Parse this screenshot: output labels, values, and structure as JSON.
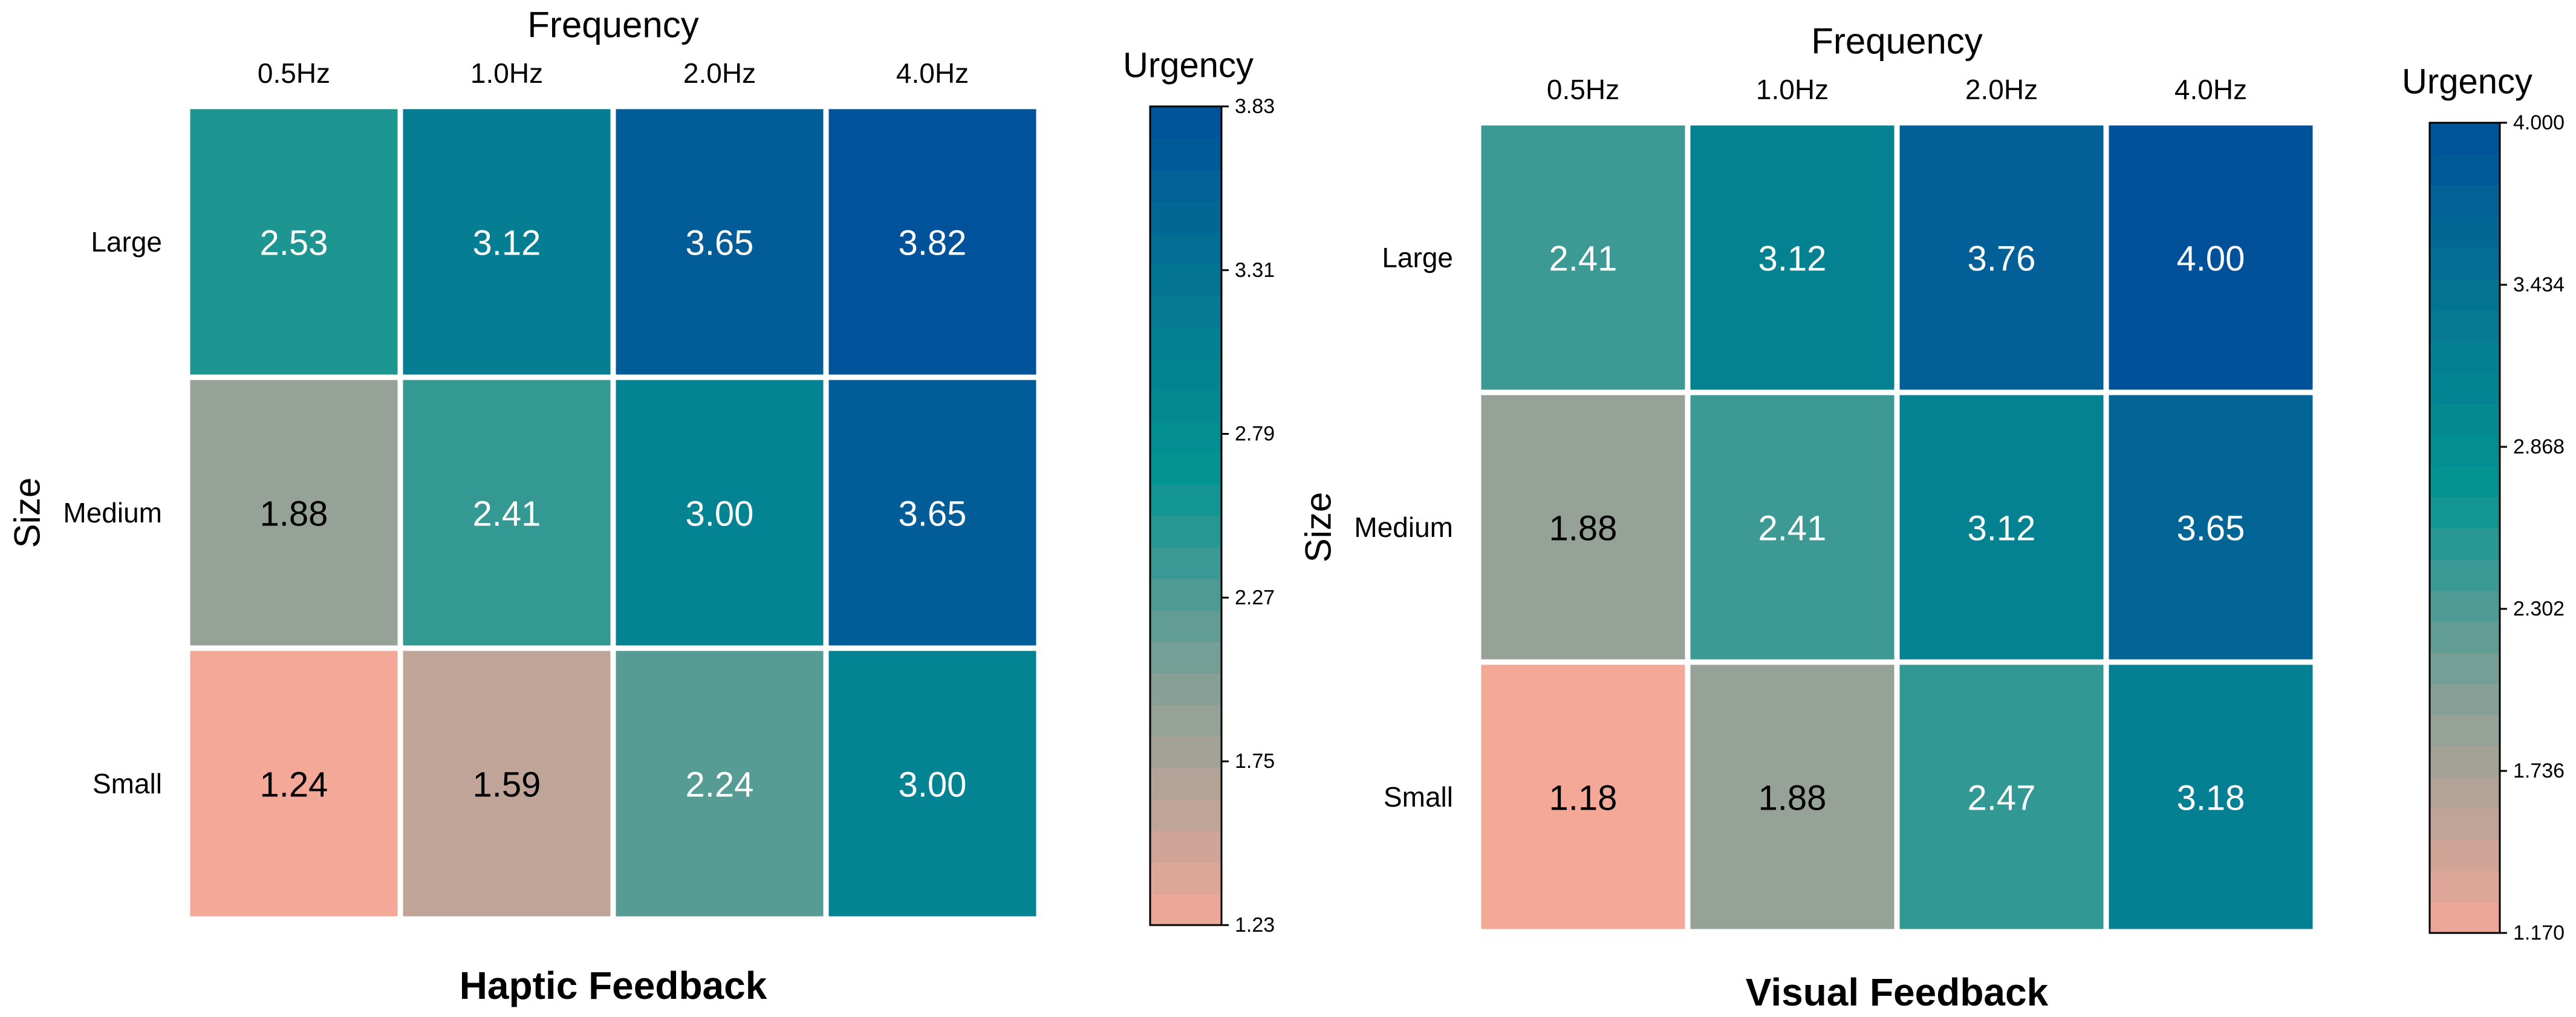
{
  "chart_data": [
    {
      "type": "heatmap",
      "title": "Haptic Feedback",
      "xlabel": "Frequency",
      "ylabel": "Size",
      "categories_x": [
        "0.5Hz",
        "1.0Hz",
        "2.0Hz",
        "4.0Hz"
      ],
      "categories_y": [
        "Large",
        "Medium",
        "Small"
      ],
      "values": [
        [
          2.53,
          3.12,
          3.65,
          3.82
        ],
        [
          1.88,
          2.41,
          3.0,
          3.65
        ],
        [
          1.24,
          1.59,
          2.24,
          3.0
        ]
      ],
      "value_labels": [
        [
          "2.53",
          "3.12",
          "3.65",
          "3.82"
        ],
        [
          "1.88",
          "2.41",
          "3.00",
          "3.65"
        ],
        [
          "1.24",
          "1.59",
          "2.24",
          "3.00"
        ]
      ],
      "colorbar": {
        "label": "Urgency",
        "range": [
          1.23,
          3.83
        ],
        "ticks": [
          1.23,
          1.75,
          2.27,
          2.79,
          3.31,
          3.83
        ],
        "tick_labels": [
          "1.23",
          "1.75",
          "2.27",
          "2.79",
          "3.31",
          "3.83"
        ]
      }
    },
    {
      "type": "heatmap",
      "title": "Visual Feedback",
      "xlabel": "Frequency",
      "ylabel": "Size",
      "categories_x": [
        "0.5Hz",
        "1.0Hz",
        "2.0Hz",
        "4.0Hz"
      ],
      "categories_y": [
        "Large",
        "Medium",
        "Small"
      ],
      "values": [
        [
          2.41,
          3.12,
          3.76,
          4.0
        ],
        [
          1.88,
          2.41,
          3.12,
          3.65
        ],
        [
          1.18,
          1.88,
          2.47,
          3.18
        ]
      ],
      "value_labels": [
        [
          "2.41",
          "3.12",
          "3.76",
          "4.00"
        ],
        [
          "1.88",
          "2.41",
          "3.12",
          "3.65"
        ],
        [
          "1.18",
          "1.88",
          "2.47",
          "3.18"
        ]
      ],
      "colorbar": {
        "label": "Urgency",
        "range": [
          1.17,
          4.0
        ],
        "ticks": [
          1.17,
          1.736,
          2.302,
          2.868,
          3.434,
          4.0
        ],
        "tick_labels": [
          "1.170",
          "1.736",
          "2.302",
          "2.868",
          "3.434",
          "4.000"
        ]
      }
    }
  ],
  "colors": {
    "low": "#f4a898",
    "mid_low": "#83a097",
    "mid": "#039491",
    "mid_high": "#057a92",
    "high": "#00519a",
    "cell_border": "#ffffff",
    "dark_text": "#000000",
    "light_text": "#ffffff"
  }
}
